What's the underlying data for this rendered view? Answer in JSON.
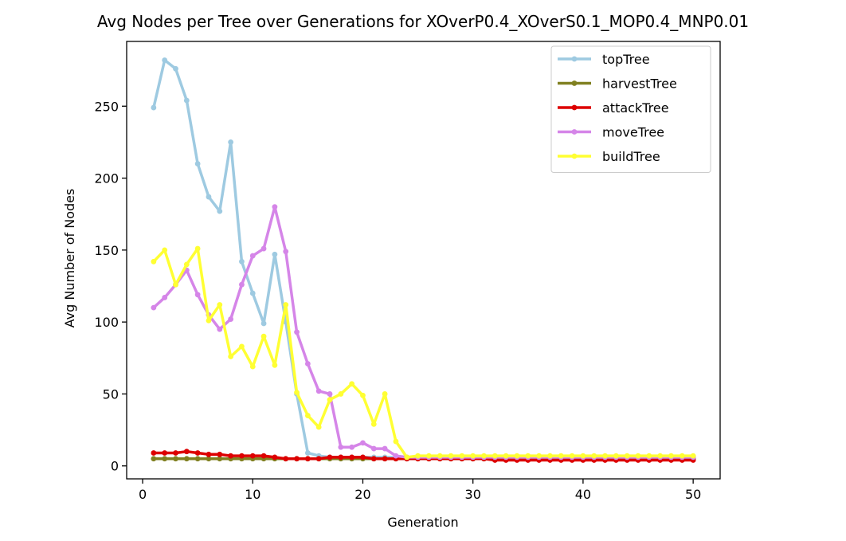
{
  "chart_data": {
    "type": "line",
    "title": "Avg Nodes per Tree over Generations for XOverP0.4_XOverS0.1_MOP0.4_MNP0.01",
    "xlabel": "Generation",
    "ylabel": "Avg Number of Nodes",
    "xlim": [
      -1.45,
      52.45
    ],
    "ylim": [
      -9,
      295
    ],
    "xticks": [
      0,
      10,
      20,
      30,
      40,
      50
    ],
    "yticks": [
      0,
      50,
      100,
      150,
      200,
      250
    ],
    "legend_position": "top-right",
    "grid": false,
    "x": [
      1,
      2,
      3,
      4,
      5,
      6,
      7,
      8,
      9,
      10,
      11,
      12,
      13,
      14,
      15,
      16,
      17,
      18,
      19,
      20,
      21,
      22,
      23,
      24,
      25,
      26,
      27,
      28,
      29,
      30,
      31,
      32,
      33,
      34,
      35,
      36,
      37,
      38,
      39,
      40,
      41,
      42,
      43,
      44,
      45,
      46,
      47,
      48,
      49,
      50
    ],
    "series": [
      {
        "name": "topTree",
        "color": "#9ecae1",
        "values": [
          249,
          282,
          276,
          254,
          210,
          187,
          177,
          225,
          142,
          120,
          99,
          147,
          100,
          50,
          9,
          7,
          6,
          6,
          6,
          6,
          6,
          6,
          6,
          6,
          6,
          6,
          6,
          6,
          6,
          6,
          6,
          6,
          6,
          6,
          6,
          6,
          6,
          6,
          6,
          6,
          6,
          6,
          6,
          6,
          6,
          6,
          6,
          6,
          6,
          6
        ]
      },
      {
        "name": "harvestTree",
        "color": "#808020",
        "values": [
          5,
          5,
          5,
          5,
          5,
          5,
          5,
          5,
          5,
          5,
          5,
          5,
          5,
          5,
          5,
          5,
          5,
          5,
          5,
          5,
          5,
          5,
          5,
          5,
          5,
          5,
          5,
          5,
          5,
          5,
          5,
          5,
          5,
          5,
          5,
          5,
          5,
          5,
          5,
          5,
          5,
          5,
          5,
          5,
          5,
          5,
          5,
          5,
          5,
          5
        ]
      },
      {
        "name": "attackTree",
        "color": "#dd0000",
        "values": [
          9,
          9,
          9,
          10,
          9,
          8,
          8,
          7,
          7,
          7,
          7,
          6,
          5,
          5,
          5,
          5,
          6,
          6,
          6,
          6,
          5,
          5,
          5,
          5,
          5,
          5,
          5,
          5,
          5,
          5,
          5,
          4,
          4,
          4,
          4,
          4,
          4,
          4,
          4,
          4,
          4,
          4,
          4,
          4,
          4,
          4,
          4,
          4,
          4,
          4
        ]
      },
      {
        "name": "moveTree",
        "color": "#d585e8",
        "values": [
          110,
          117,
          126,
          136,
          119,
          105,
          95,
          102,
          126,
          146,
          151,
          180,
          149,
          93,
          71,
          52,
          50,
          13,
          13,
          16,
          12,
          12,
          7,
          6,
          6,
          6,
          6,
          6,
          6,
          6,
          6,
          6,
          6,
          6,
          6,
          6,
          6,
          6,
          6,
          6,
          6,
          6,
          6,
          6,
          6,
          6,
          6,
          6,
          6,
          6
        ]
      },
      {
        "name": "buildTree",
        "color": "#ffff33",
        "values": [
          142,
          150,
          126,
          140,
          151,
          101,
          112,
          76,
          83,
          69,
          90,
          70,
          112,
          51,
          35,
          27,
          46,
          50,
          57,
          49,
          29,
          50,
          17,
          6,
          7,
          7,
          7,
          7,
          7,
          7,
          7,
          7,
          7,
          7,
          7,
          7,
          7,
          7,
          7,
          7,
          7,
          7,
          7,
          7,
          7,
          7,
          7,
          7,
          7,
          7
        ]
      }
    ]
  }
}
